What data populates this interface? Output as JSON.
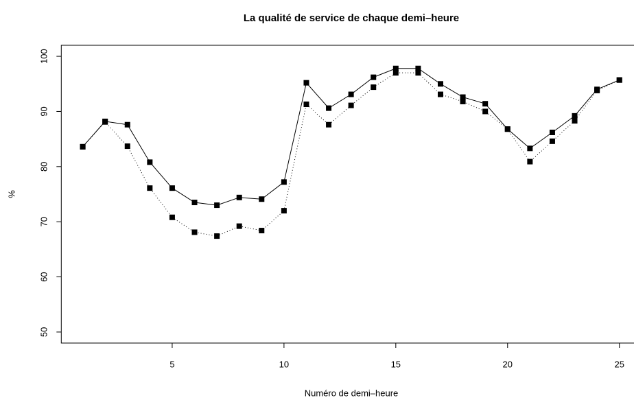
{
  "chart_data": {
    "type": "line",
    "title": "La qualité de service de chaque demi–heure",
    "xlabel": "Numéro de demi–heure",
    "ylabel": "%",
    "x": [
      1,
      2,
      3,
      4,
      5,
      6,
      7,
      8,
      9,
      10,
      11,
      12,
      13,
      14,
      15,
      16,
      17,
      18,
      19,
      20,
      21,
      22,
      23,
      24,
      25
    ],
    "series": [
      {
        "color": "#000000",
        "line_style": "solid",
        "marker": "square",
        "values": [
          83.6,
          88.2,
          87.6,
          80.8,
          76.1,
          73.5,
          73.0,
          74.4,
          74.1,
          77.2,
          95.2,
          90.6,
          93.1,
          96.2,
          97.8,
          97.8,
          95.0,
          92.6,
          91.4,
          86.8,
          83.3,
          86.2,
          89.2,
          94.0,
          95.7
        ]
      },
      {
        "color": "#000000",
        "line_style": "dotted",
        "marker": "square",
        "values": [
          83.6,
          88.1,
          83.7,
          76.1,
          70.8,
          68.1,
          67.4,
          69.2,
          68.4,
          72.0,
          91.3,
          87.6,
          91.1,
          94.4,
          97.0,
          97.0,
          93.1,
          91.8,
          90.0,
          86.8,
          80.9,
          84.6,
          88.3,
          93.8,
          95.7
        ]
      }
    ],
    "xlim": [
      0.04,
      25.96
    ],
    "xticks": [
      5,
      10,
      15,
      20,
      25
    ],
    "ylim": [
      48,
      102
    ],
    "yticks": [
      50,
      60,
      70,
      80,
      90,
      100
    ],
    "grid": false
  }
}
